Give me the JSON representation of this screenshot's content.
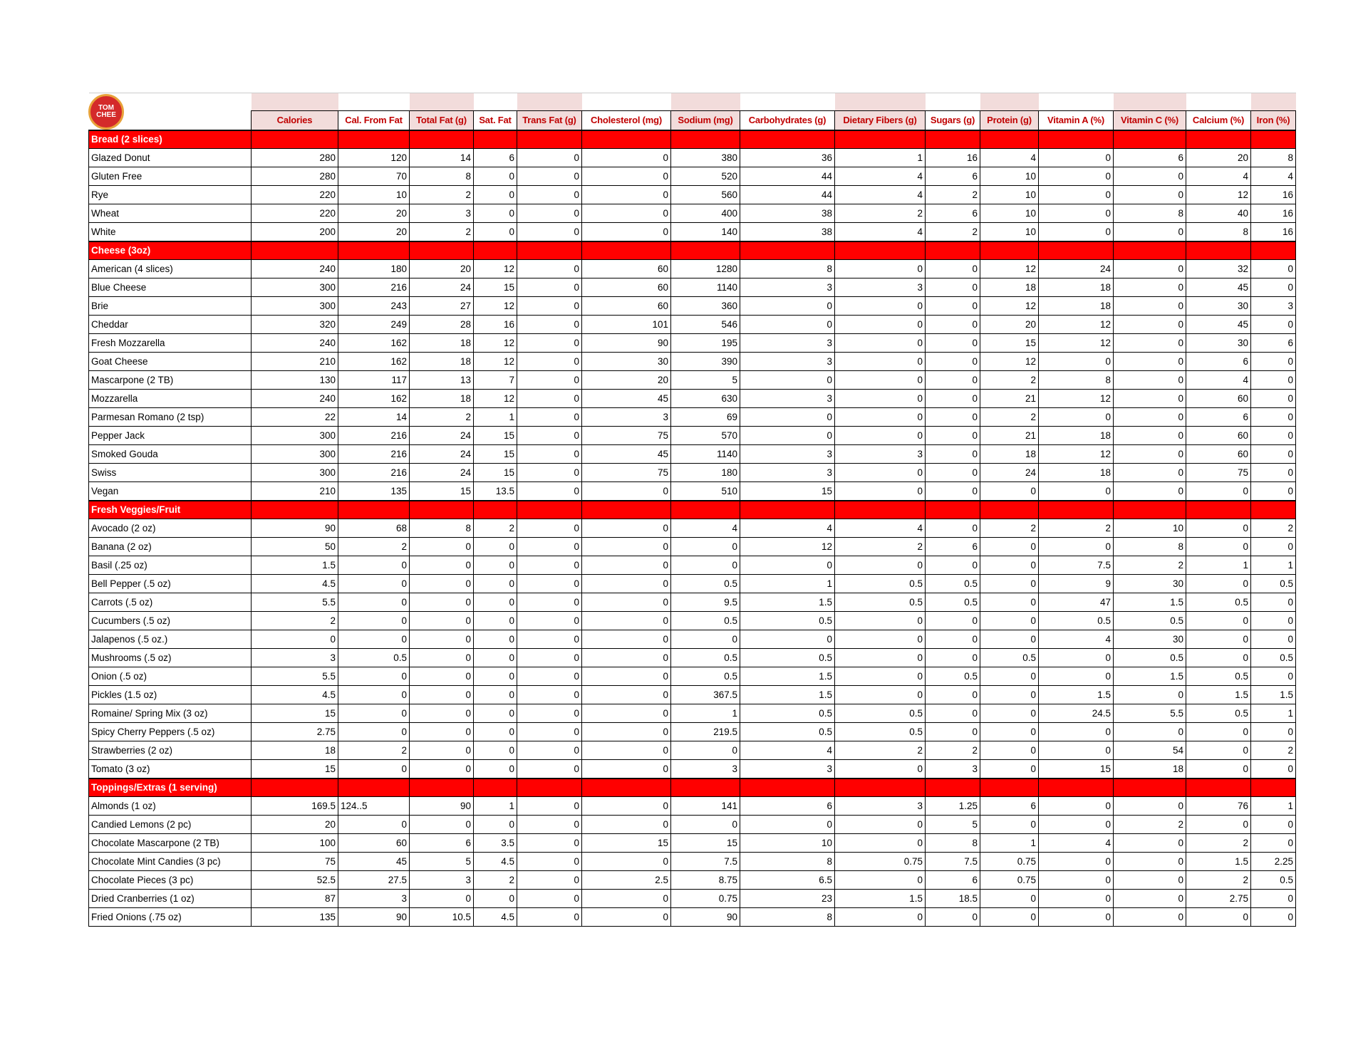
{
  "logo": {
    "text": "TOM & CHEE",
    "colors": {
      "fill": "#d42a2a",
      "ring": "#e8a23a"
    }
  },
  "colors": {
    "header_text": "#c00000",
    "header_pink": "#f2dcdb",
    "section_bg": "#ff0000"
  },
  "columns": [
    "Calories",
    "Cal. From Fat",
    "Total Fat (g)",
    "Sat. Fat",
    "Trans Fat (g)",
    "Cholesterol (mg)",
    "Sodium (mg)",
    "Carbohydrates (g)",
    "Dietary Fibers (g)",
    "Sugars (g)",
    "Protein (g)",
    "Vitamin A (%)",
    "Vitamin C (%)",
    "Calcium (%)",
    "Iron (%)"
  ],
  "sections": [
    {
      "title": "Bread (2 slices)",
      "rows": [
        [
          "Glazed Donut",
          "280",
          "120",
          "14",
          "6",
          "0",
          "0",
          "380",
          "36",
          "1",
          "16",
          "4",
          "0",
          "6",
          "20",
          "8"
        ],
        [
          "Gluten Free",
          "280",
          "70",
          "8",
          "0",
          "0",
          "0",
          "520",
          "44",
          "4",
          "6",
          "10",
          "0",
          "0",
          "4",
          "4"
        ],
        [
          "Rye",
          "220",
          "10",
          "2",
          "0",
          "0",
          "0",
          "560",
          "44",
          "4",
          "2",
          "10",
          "0",
          "0",
          "12",
          "16"
        ],
        [
          "Wheat",
          "220",
          "20",
          "3",
          "0",
          "0",
          "0",
          "400",
          "38",
          "2",
          "6",
          "10",
          "0",
          "8",
          "40",
          "16"
        ],
        [
          "White",
          "200",
          "20",
          "2",
          "0",
          "0",
          "0",
          "140",
          "38",
          "4",
          "2",
          "10",
          "0",
          "0",
          "8",
          "16"
        ]
      ]
    },
    {
      "title": "Cheese (3oz)",
      "rows": [
        [
          "American (4 slices)",
          "240",
          "180",
          "20",
          "12",
          "0",
          "60",
          "1280",
          "8",
          "0",
          "0",
          "12",
          "24",
          "0",
          "32",
          "0"
        ],
        [
          "Blue Cheese",
          "300",
          "216",
          "24",
          "15",
          "0",
          "60",
          "1140",
          "3",
          "3",
          "0",
          "18",
          "18",
          "0",
          "45",
          "0"
        ],
        [
          "Brie",
          "300",
          "243",
          "27",
          "12",
          "0",
          "60",
          "360",
          "0",
          "0",
          "0",
          "12",
          "18",
          "0",
          "30",
          "3"
        ],
        [
          "Cheddar",
          "320",
          "249",
          "28",
          "16",
          "0",
          "101",
          "546",
          "0",
          "0",
          "0",
          "20",
          "12",
          "0",
          "45",
          "0"
        ],
        [
          "Fresh Mozzarella",
          "240",
          "162",
          "18",
          "12",
          "0",
          "90",
          "195",
          "3",
          "0",
          "0",
          "15",
          "12",
          "0",
          "30",
          "6"
        ],
        [
          "Goat Cheese",
          "210",
          "162",
          "18",
          "12",
          "0",
          "30",
          "390",
          "3",
          "0",
          "0",
          "12",
          "0",
          "0",
          "6",
          "0"
        ],
        [
          "Mascarpone (2 TB)",
          "130",
          "117",
          "13",
          "7",
          "0",
          "20",
          "5",
          "0",
          "0",
          "0",
          "2",
          "8",
          "0",
          "4",
          "0"
        ],
        [
          "Mozzarella",
          "240",
          "162",
          "18",
          "12",
          "0",
          "45",
          "630",
          "3",
          "0",
          "0",
          "21",
          "12",
          "0",
          "60",
          "0"
        ],
        [
          "Parmesan Romano (2 tsp)",
          "22",
          "14",
          "2",
          "1",
          "0",
          "3",
          "69",
          "0",
          "0",
          "0",
          "2",
          "0",
          "0",
          "6",
          "0"
        ],
        [
          "Pepper Jack",
          "300",
          "216",
          "24",
          "15",
          "0",
          "75",
          "570",
          "0",
          "0",
          "0",
          "21",
          "18",
          "0",
          "60",
          "0"
        ],
        [
          "Smoked Gouda",
          "300",
          "216",
          "24",
          "15",
          "0",
          "45",
          "1140",
          "3",
          "3",
          "0",
          "18",
          "12",
          "0",
          "60",
          "0"
        ],
        [
          "Swiss",
          "300",
          "216",
          "24",
          "15",
          "0",
          "75",
          "180",
          "3",
          "0",
          "0",
          "24",
          "18",
          "0",
          "75",
          "0"
        ],
        [
          "Vegan",
          "210",
          "135",
          "15",
          "13.5",
          "0",
          "0",
          "510",
          "15",
          "0",
          "0",
          "0",
          "0",
          "0",
          "0",
          "0"
        ]
      ]
    },
    {
      "title": "Fresh Veggies/Fruit",
      "rows": [
        [
          "Avocado (2 oz)",
          "90",
          "68",
          "8",
          "2",
          "0",
          "0",
          "4",
          "4",
          "4",
          "0",
          "2",
          "2",
          "10",
          "0",
          "2"
        ],
        [
          "Banana (2 oz)",
          "50",
          "2",
          "0",
          "0",
          "0",
          "0",
          "0",
          "12",
          "2",
          "6",
          "0",
          "0",
          "8",
          "0",
          "0"
        ],
        [
          "Basil (.25 oz)",
          "1.5",
          "0",
          "0",
          "0",
          "0",
          "0",
          "0",
          "0",
          "0",
          "0",
          "0",
          "7.5",
          "2",
          "1",
          "1"
        ],
        [
          "Bell Pepper (.5 oz)",
          "4.5",
          "0",
          "0",
          "0",
          "0",
          "0",
          "0.5",
          "1",
          "0.5",
          "0.5",
          "0",
          "9",
          "30",
          "0",
          "0.5"
        ],
        [
          "Carrots (.5 oz)",
          "5.5",
          "0",
          "0",
          "0",
          "0",
          "0",
          "9.5",
          "1.5",
          "0.5",
          "0.5",
          "0",
          "47",
          "1.5",
          "0.5",
          "0"
        ],
        [
          "Cucumbers (.5 oz)",
          "2",
          "0",
          "0",
          "0",
          "0",
          "0",
          "0.5",
          "0.5",
          "0",
          "0",
          "0",
          "0.5",
          "0.5",
          "0",
          "0"
        ],
        [
          "Jalapenos (.5 oz.)",
          "0",
          "0",
          "0",
          "0",
          "0",
          "0",
          "0",
          "0",
          "0",
          "0",
          "0",
          "4",
          "30",
          "0",
          "0"
        ],
        [
          "Mushrooms (.5 oz)",
          "3",
          "0.5",
          "0",
          "0",
          "0",
          "0",
          "0.5",
          "0.5",
          "0",
          "0",
          "0.5",
          "0",
          "0.5",
          "0",
          "0.5"
        ],
        [
          "Onion (.5 oz)",
          "5.5",
          "0",
          "0",
          "0",
          "0",
          "0",
          "0.5",
          "1.5",
          "0",
          "0.5",
          "0",
          "0",
          "1.5",
          "0.5",
          "0"
        ],
        [
          "Pickles (1.5 oz)",
          "4.5",
          "0",
          "0",
          "0",
          "0",
          "0",
          "367.5",
          "1.5",
          "0",
          "0",
          "0",
          "1.5",
          "0",
          "1.5",
          "1.5"
        ],
        [
          "Romaine/ Spring Mix (3 oz)",
          "15",
          "0",
          "0",
          "0",
          "0",
          "0",
          "1",
          "0.5",
          "0.5",
          "0",
          "0",
          "24.5",
          "5.5",
          "0.5",
          "1"
        ],
        [
          "Spicy Cherry Peppers (.5 oz)",
          "2.75",
          "0",
          "0",
          "0",
          "0",
          "0",
          "219.5",
          "0.5",
          "0.5",
          "0",
          "0",
          "0",
          "0",
          "0",
          "0"
        ],
        [
          "Strawberries (2 oz)",
          "18",
          "2",
          "0",
          "0",
          "0",
          "0",
          "0",
          "4",
          "2",
          "2",
          "0",
          "0",
          "54",
          "0",
          "2"
        ],
        [
          "Tomato (3 oz)",
          "15",
          "0",
          "0",
          "0",
          "0",
          "0",
          "3",
          "3",
          "0",
          "3",
          "0",
          "15",
          "18",
          "0",
          "0"
        ]
      ]
    },
    {
      "title": "Toppings/Extras (1 serving)",
      "rows": [
        [
          "Almonds (1 oz)",
          "169.5",
          "124..5",
          "90",
          "1",
          "0",
          "0",
          "141",
          "6",
          "3",
          "1.25",
          "6",
          "0",
          "0",
          "76",
          "1"
        ],
        [
          "Candied Lemons (2 pc)",
          "20",
          "0",
          "0",
          "0",
          "0",
          "0",
          "0",
          "0",
          "0",
          "5",
          "0",
          "0",
          "2",
          "0",
          "0"
        ],
        [
          "Chocolate Mascarpone (2 TB)",
          "100",
          "60",
          "6",
          "3.5",
          "0",
          "15",
          "15",
          "10",
          "0",
          "8",
          "1",
          "4",
          "0",
          "2",
          "0"
        ],
        [
          "Chocolate Mint Candies (3 pc)",
          "75",
          "45",
          "5",
          "4.5",
          "0",
          "0",
          "7.5",
          "8",
          "0.75",
          "7.5",
          "0.75",
          "0",
          "0",
          "1.5",
          "2.25"
        ],
        [
          "Chocolate Pieces (3 pc)",
          "52.5",
          "27.5",
          "3",
          "2",
          "0",
          "2.5",
          "8.75",
          "6.5",
          "0",
          "6",
          "0.75",
          "0",
          "0",
          "2",
          "0.5"
        ],
        [
          "Dried Cranberries (1 oz)",
          "87",
          "3",
          "0",
          "0",
          "0",
          "0",
          "0.75",
          "23",
          "1.5",
          "18.5",
          "0",
          "0",
          "0",
          "2.75",
          "0"
        ],
        [
          "Fried Onions (.75 oz)",
          "135",
          "90",
          "10.5",
          "4.5",
          "0",
          "0",
          "90",
          "8",
          "0",
          "0",
          "0",
          "0",
          "0",
          "0",
          "0"
        ]
      ]
    }
  ]
}
